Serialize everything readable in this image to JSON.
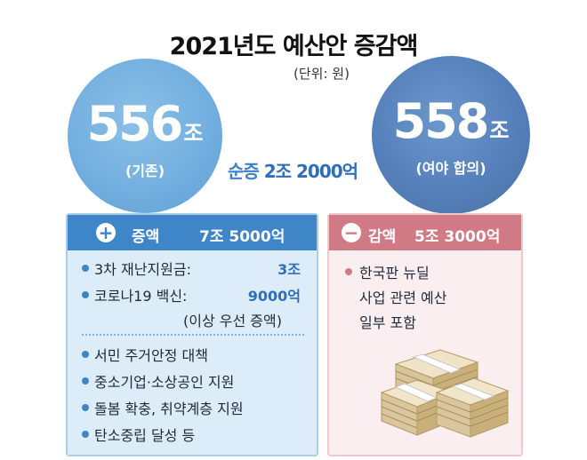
{
  "title": "2021년도 예산안 증감액",
  "unit": "(단위: 원)",
  "left_circle": {
    "value": "556",
    "unit": "조",
    "caption": "(기존)"
  },
  "right_circle": {
    "value": "558",
    "unit": "조",
    "caption": "(여야 합의)"
  },
  "net_change": {
    "label": "순증",
    "amount": "2조 2000억"
  },
  "increase": {
    "icon": "plus-icon",
    "label": "증액",
    "total": "7조 5000억",
    "items": [
      {
        "label": "3차 재난지원금:",
        "value": "3조"
      },
      {
        "label": "코로나19 백신:",
        "value": "9000억"
      }
    ],
    "note": "(이상 우선 증액)",
    "others": [
      "서민 주거안정 대책",
      "중소기업·소상공인 지원",
      "돌봄 확충, 취약계층 지원",
      "탄소중립 달성 등"
    ]
  },
  "decrease": {
    "icon": "minus-icon",
    "label": "감액",
    "total": "5조 3000억",
    "lines": [
      "한국판 뉴딜",
      "사업 관련 예산",
      "일부 포함"
    ]
  },
  "colors": {
    "left_circle": "#73afe0",
    "right_circle": "#5680bb",
    "increase_header": "#3e86c8",
    "decrease_header": "#d07a86",
    "net_text": "#2f6fb8"
  }
}
